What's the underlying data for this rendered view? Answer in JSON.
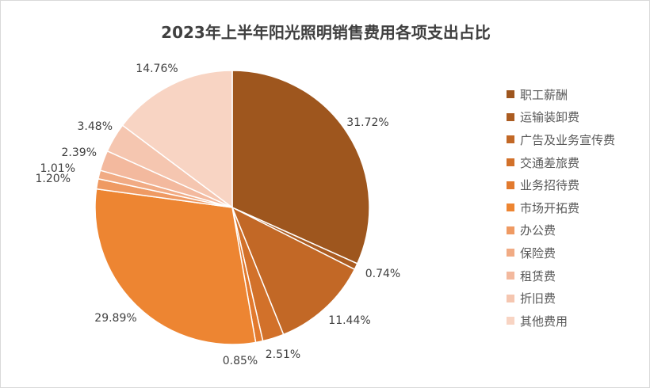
{
  "chart_data": {
    "type": "pie",
    "title": "2023年上半年阳光照明销售费用各项支出占比",
    "legend_position": "right",
    "slices": [
      {
        "name": "职工薪酬",
        "value": 31.72,
        "label": "31.72%",
        "color": "#9e561e"
      },
      {
        "name": "运输装卸费",
        "value": 0.74,
        "label": "0.74%",
        "color": "#ab5c21"
      },
      {
        "name": "广告及业务宣传费",
        "value": 11.44,
        "label": "11.44%",
        "color": "#c26826"
      },
      {
        "name": "交通差旅费",
        "value": 2.51,
        "label": "2.51%",
        "color": "#d2712a"
      },
      {
        "name": "业务招待费",
        "value": 0.85,
        "label": "0.85%",
        "color": "#e27a2e"
      },
      {
        "name": "市场开拓费",
        "value": 29.89,
        "label": "29.89%",
        "color": "#ed8532"
      },
      {
        "name": "办公费",
        "value": 1.2,
        "label": "1.20%",
        "color": "#ef9a63"
      },
      {
        "name": "保险费",
        "value": 1.01,
        "label": "1.01%",
        "color": "#f1ab84"
      },
      {
        "name": "租赁费",
        "value": 2.39,
        "label": "2.39%",
        "color": "#f3b99e"
      },
      {
        "name": "折旧费",
        "value": 3.48,
        "label": "3.48%",
        "color": "#f5c6b0"
      },
      {
        "name": "其他费用",
        "value": 14.76,
        "label": "14.76%",
        "color": "#f8d4c3"
      }
    ]
  }
}
